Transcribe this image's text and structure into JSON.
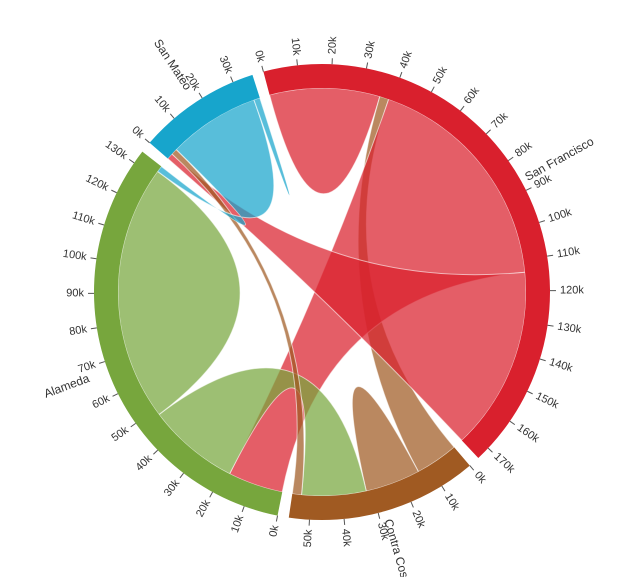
{
  "chart_data": {
    "type": "chord",
    "groups": [
      {
        "name": "San Francisco",
        "total": 174000,
        "color": "#d9202d",
        "ticks_step_k": 10,
        "ticks_max_k": 170
      },
      {
        "name": "Contra Costa",
        "total": 56000,
        "color": "#a05a22",
        "ticks_step_k": 10,
        "ticks_max_k": 50
      },
      {
        "name": "Alameda",
        "total": 134000,
        "color": "#77a63d",
        "ticks_step_k": 10,
        "ticks_max_k": 130
      },
      {
        "name": "San Mateo",
        "total": 36000,
        "color": "#17a5cc",
        "ticks_step_k": 10,
        "ticks_max_k": 30
      }
    ],
    "matrix": [
      [
        36000,
        3000,
        75000,
        60000
      ],
      [
        14000,
        18000,
        21000,
        3000
      ],
      [
        18000,
        30000,
        84000,
        2000
      ],
      [
        2000,
        2000,
        30000,
        2000
      ]
    ],
    "tick_unit_suffix": "k",
    "tick_values_k": {
      "San Francisco": [
        0,
        10,
        20,
        30,
        40,
        50,
        60,
        70,
        80,
        90,
        100,
        110,
        120,
        130,
        140,
        150,
        160,
        170
      ],
      "Contra Costa": [
        0,
        10,
        20,
        30,
        40,
        50
      ],
      "Alameda": [
        0,
        10,
        20,
        30,
        40,
        50,
        60,
        70,
        80,
        90,
        100,
        110,
        120,
        130
      ],
      "San Mateo": [
        0,
        10,
        20,
        30
      ]
    },
    "legend": "none"
  }
}
